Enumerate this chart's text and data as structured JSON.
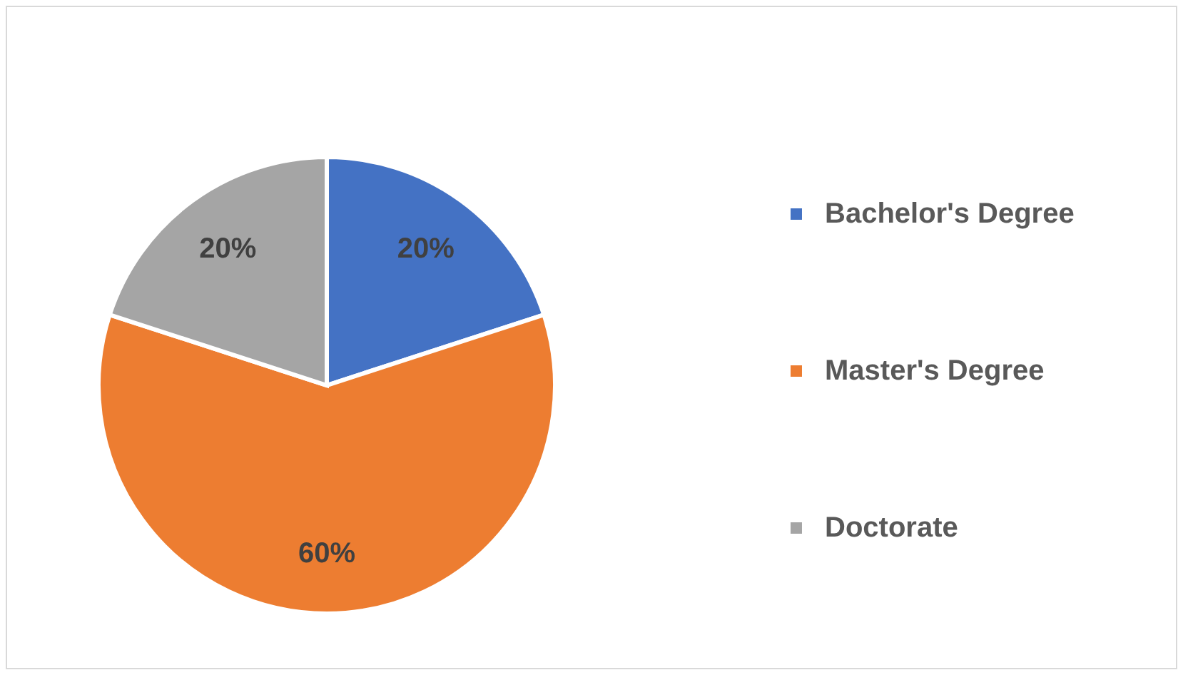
{
  "chart_data": {
    "type": "pie",
    "categories": [
      "Bachelor's Degree",
      "Master's Degree",
      "Doctorate"
    ],
    "values": [
      20,
      60,
      20
    ],
    "colors": [
      "#4472c4",
      "#ed7d31",
      "#a5a5a5"
    ],
    "value_labels": [
      "20%",
      "60%",
      "20%"
    ],
    "legend": "right"
  }
}
